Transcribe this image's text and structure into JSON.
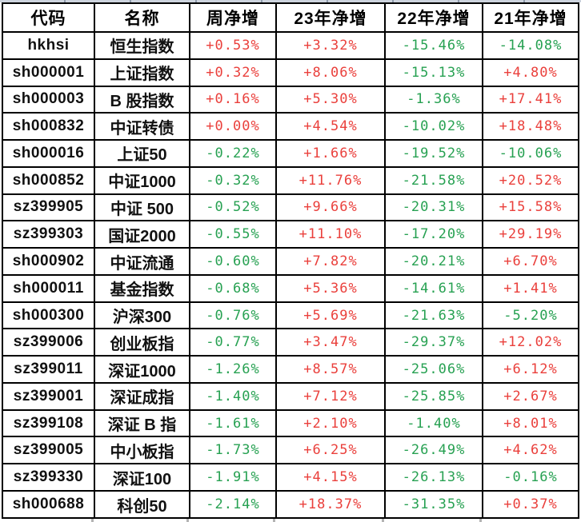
{
  "table": {
    "columns": [
      {
        "key": "code",
        "label": "代码"
      },
      {
        "key": "name",
        "label": "名称"
      },
      {
        "key": "week",
        "label": "周净增"
      },
      {
        "key": "y23",
        "label": "23年净增"
      },
      {
        "key": "y22",
        "label": "22年净增"
      },
      {
        "key": "y21",
        "label": "21年净增"
      }
    ],
    "rows": [
      {
        "code": "hkhsi",
        "name": "恒生指数",
        "week": "+0.53%",
        "y23": "+3.32%",
        "y22": "-15.46%",
        "y21": "-14.08%"
      },
      {
        "code": "sh000001",
        "name": "上证指数",
        "week": "+0.32%",
        "y23": "+8.06%",
        "y22": "-15.13%",
        "y21": "+4.80%"
      },
      {
        "code": "sh000003",
        "name": "B 股指数",
        "week": "+0.16%",
        "y23": "+5.30%",
        "y22": "-1.36%",
        "y21": "+17.41%"
      },
      {
        "code": "sh000832",
        "name": "中证转债",
        "week": "+0.00%",
        "y23": "+4.54%",
        "y22": "-10.02%",
        "y21": "+18.48%"
      },
      {
        "code": "sh000016",
        "name": "上证50",
        "week": "-0.22%",
        "y23": "+1.66%",
        "y22": "-19.52%",
        "y21": "-10.06%"
      },
      {
        "code": "sh000852",
        "name": "中证1000",
        "week": "-0.32%",
        "y23": "+11.76%",
        "y22": "-21.58%",
        "y21": "+20.52%"
      },
      {
        "code": "sz399905",
        "name": "中证 500",
        "week": "-0.52%",
        "y23": "+9.66%",
        "y22": "-20.31%",
        "y21": "+15.58%"
      },
      {
        "code": "sz399303",
        "name": "国证2000",
        "week": "-0.55%",
        "y23": "+11.10%",
        "y22": "-17.20%",
        "y21": "+29.19%"
      },
      {
        "code": "sh000902",
        "name": "中证流通",
        "week": "-0.60%",
        "y23": "+7.82%",
        "y22": "-20.21%",
        "y21": "+6.70%"
      },
      {
        "code": "sh000011",
        "name": "基金指数",
        "week": "-0.68%",
        "y23": "+5.36%",
        "y22": "-14.61%",
        "y21": "+1.41%"
      },
      {
        "code": "sh000300",
        "name": "沪深300",
        "week": "-0.76%",
        "y23": "+5.69%",
        "y22": "-21.63%",
        "y21": "-5.20%"
      },
      {
        "code": "sz399006",
        "name": "创业板指",
        "week": "-0.77%",
        "y23": "+3.47%",
        "y22": "-29.37%",
        "y21": "+12.02%"
      },
      {
        "code": "sz399011",
        "name": "深证1000",
        "week": "-1.26%",
        "y23": "+8.57%",
        "y22": "-25.06%",
        "y21": "+6.12%"
      },
      {
        "code": "sz399001",
        "name": "深证成指",
        "week": "-1.40%",
        "y23": "+7.12%",
        "y22": "-25.85%",
        "y21": "+2.67%"
      },
      {
        "code": "sz399108",
        "name": "深证 B 指",
        "week": "-1.61%",
        "y23": "+2.10%",
        "y22": "-1.40%",
        "y21": "+8.01%"
      },
      {
        "code": "sz399005",
        "name": "中小板指",
        "week": "-1.73%",
        "y23": "+6.25%",
        "y22": "-26.49%",
        "y21": "+4.62%"
      },
      {
        "code": "sz399330",
        "name": "深证100",
        "week": "-1.91%",
        "y23": "+4.15%",
        "y22": "-26.13%",
        "y21": "-0.16%"
      },
      {
        "code": "sh000688",
        "name": "科创50",
        "week": "-2.14%",
        "y23": "+18.37%",
        "y22": "-31.35%",
        "y21": "+0.37%"
      }
    ]
  },
  "colors": {
    "positive": "#ea403c",
    "negative": "#27a152",
    "border": "#000000",
    "header_text": "#000000",
    "gridline_strip_top": "#ccd3dd"
  }
}
